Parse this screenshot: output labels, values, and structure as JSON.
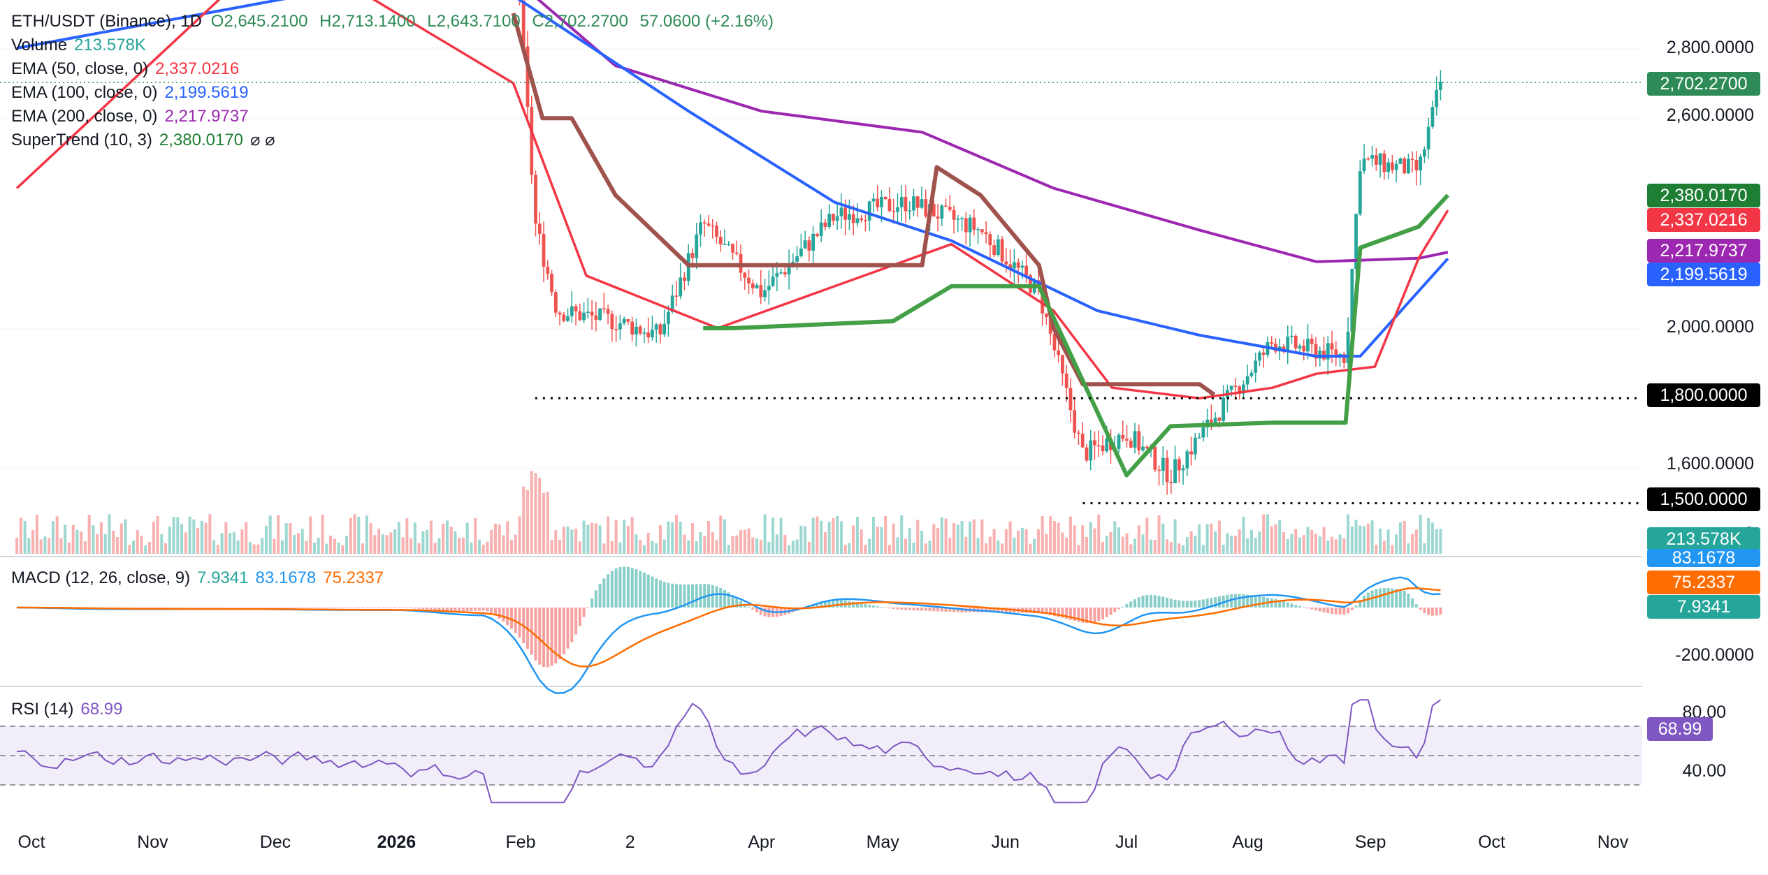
{
  "header": {
    "symbol": "ETH/USDT (Binance), 1D",
    "o_label": "O",
    "o_value": "2,645.2100",
    "h_label": "H",
    "h_value": "2,713.1400",
    "l_label": "L",
    "l_value": "2,643.7100",
    "c_label": "C",
    "c_value": "2,702.2700",
    "change": "57.0600 (+2.16%)"
  },
  "legend": {
    "volume_label": "Volume",
    "volume_value": "213.578K",
    "ema50_label": "EMA (50, close, 0)",
    "ema50_value": "2,337.0216",
    "ema100_label": "EMA (100, close, 0)",
    "ema100_value": "2,199.5619",
    "ema200_label": "EMA (200, close, 0)",
    "ema200_value": "2,217.9737",
    "supertrend_label": "SuperTrend (10, 3)",
    "supertrend_value": "2,380.0170",
    "supertrend_icons": "⌀ ⌀",
    "macd_label": "MACD (12, 26, close, 9)",
    "macd_hist": "7.9341",
    "macd_line": "83.1678",
    "macd_signal": "75.2337",
    "rsi_label": "RSI (14)",
    "rsi_value": "68.99"
  },
  "price_axis": {
    "ticks": [
      "2,800.0000",
      "2,600.0000",
      "2,000.0000",
      "1,600.0000"
    ],
    "tick_values": [
      2800,
      2600,
      2000,
      1600
    ],
    "partial_tick": "0"
  },
  "price_tags": {
    "last": "2,702.2700",
    "supertrend": "2,380.0170",
    "ema50": "2,337.0216",
    "ema200": "2,217.9737",
    "ema100": "2,199.5619",
    "level_1800": "1,800.0000",
    "level_1500": "1,500.0000",
    "volume": "213.578K"
  },
  "macd_axis": {
    "tick": "-200.0000",
    "line_tag": "83.1678",
    "signal_tag": "75.2337",
    "hist_tag": "7.9341"
  },
  "rsi_axis": {
    "tick_80": "80.00",
    "tick_40": "40.00",
    "value_tag": "68.99"
  },
  "time_axis": [
    "Oct",
    "Nov",
    "Dec",
    "2026",
    "Feb",
    "2",
    "Apr",
    "May",
    "Jun",
    "Jul",
    "Aug",
    "Sep",
    "Oct",
    "Nov"
  ],
  "colors": {
    "up": "#26a69a",
    "down": "#ef5350",
    "ema50": "#f23645",
    "ema100": "#2962ff",
    "ema200": "#9c27b0",
    "st_up": "#43a047",
    "st_down": "#a0524d",
    "macd": "#2196f3",
    "signal": "#ff6d00",
    "rsi": "#7e57c2",
    "black": "#000000",
    "green": "#1e7e34"
  },
  "chart_data": {
    "type": "candlestick",
    "title": "ETH/USDT (Binance), 1D",
    "price_range": [
      1450,
      2900
    ],
    "horizontal_levels": [
      1800,
      1500
    ],
    "ema50_path": [
      [
        2025.74,
        2400
      ],
      [
        2025.92,
        3100
      ],
      [
        2026.08,
        2700
      ],
      [
        2026.13,
        2150
      ],
      [
        2026.22,
        2000
      ],
      [
        2026.3,
        2120
      ],
      [
        2026.38,
        2240
      ],
      [
        2026.45,
        2050
      ],
      [
        2026.49,
        1830
      ],
      [
        2026.55,
        1800
      ],
      [
        2026.6,
        1830
      ],
      [
        2026.63,
        1870
      ],
      [
        2026.67,
        1890
      ],
      [
        2026.7,
        2200
      ],
      [
        2026.72,
        2337
      ]
    ],
    "ema100_path": [
      [
        2025.74,
        2800
      ],
      [
        2026.0,
        3000
      ],
      [
        2026.08,
        2950
      ],
      [
        2026.2,
        2620
      ],
      [
        2026.3,
        2360
      ],
      [
        2026.38,
        2250
      ],
      [
        2026.48,
        2050
      ],
      [
        2026.55,
        1980
      ],
      [
        2026.63,
        1920
      ],
      [
        2026.66,
        1920
      ],
      [
        2026.72,
        2199
      ]
    ],
    "ema200_path": [
      [
        2025.74,
        3000
      ],
      [
        2026.08,
        3000
      ],
      [
        2026.15,
        2750
      ],
      [
        2026.25,
        2620
      ],
      [
        2026.36,
        2560
      ],
      [
        2026.45,
        2400
      ],
      [
        2026.55,
        2280
      ],
      [
        2026.63,
        2190
      ],
      [
        2026.7,
        2200
      ],
      [
        2026.72,
        2217
      ]
    ],
    "supertrend_down_path": [
      [
        2026.08,
        2900
      ],
      [
        2026.1,
        2600
      ],
      [
        2026.12,
        2600
      ],
      [
        2026.15,
        2380
      ],
      [
        2026.2,
        2180
      ],
      [
        2026.24,
        2180
      ],
      [
        2026.36,
        2180
      ],
      [
        2026.37,
        2460
      ],
      [
        2026.4,
        2380
      ],
      [
        2026.44,
        2180
      ],
      [
        2026.45,
        2000
      ],
      [
        2026.47,
        1840
      ],
      [
        2026.55,
        1840
      ],
      [
        2026.56,
        1810
      ]
    ],
    "supertrend_up_path": [
      [
        2026.21,
        2000
      ],
      [
        2026.23,
        2000
      ],
      [
        2026.34,
        2020
      ],
      [
        2026.38,
        2120
      ],
      [
        2026.44,
        2120
      ],
      [
        2026.5,
        1580
      ],
      [
        2026.53,
        1720
      ],
      [
        2026.6,
        1730
      ],
      [
        2026.65,
        1730
      ],
      [
        2026.66,
        2230
      ],
      [
        2026.7,
        2290
      ],
      [
        2026.72,
        2380
      ]
    ],
    "last_close": 2702.27,
    "macd_value": 83.1678,
    "signal_value": 75.2337,
    "hist_value": 7.9341,
    "rsi_value": 68.99
  }
}
